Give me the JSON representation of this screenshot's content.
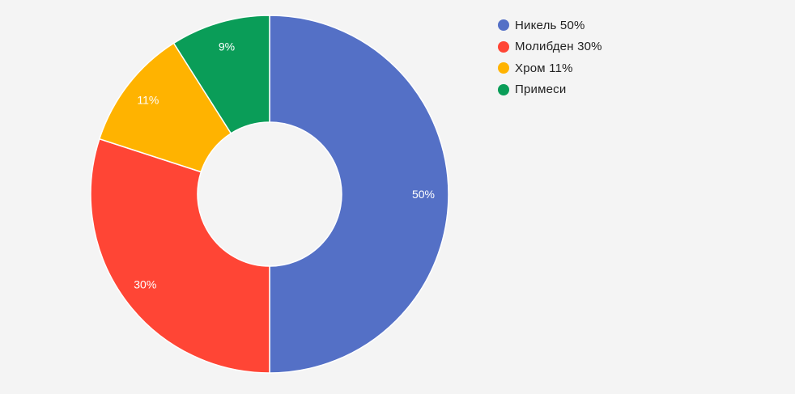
{
  "chart_data": {
    "type": "pie",
    "variant": "donut",
    "title": "",
    "legend_position": "right",
    "slices": [
      {
        "name": "Никель",
        "legend_label": "Никель 50%",
        "value": 50,
        "label": "50%",
        "color": "#5470c6"
      },
      {
        "name": "Молибден",
        "legend_label": "Молибден 30%",
        "value": 30,
        "label": "30%",
        "color": "#ff4535"
      },
      {
        "name": "Хром",
        "legend_label": "Хром 11%",
        "value": 11,
        "label": "11%",
        "color": "#ffb300"
      },
      {
        "name": "Примеси",
        "legend_label": "Примеси",
        "value": 9,
        "label": "9%",
        "color": "#0a9d58"
      }
    ]
  }
}
